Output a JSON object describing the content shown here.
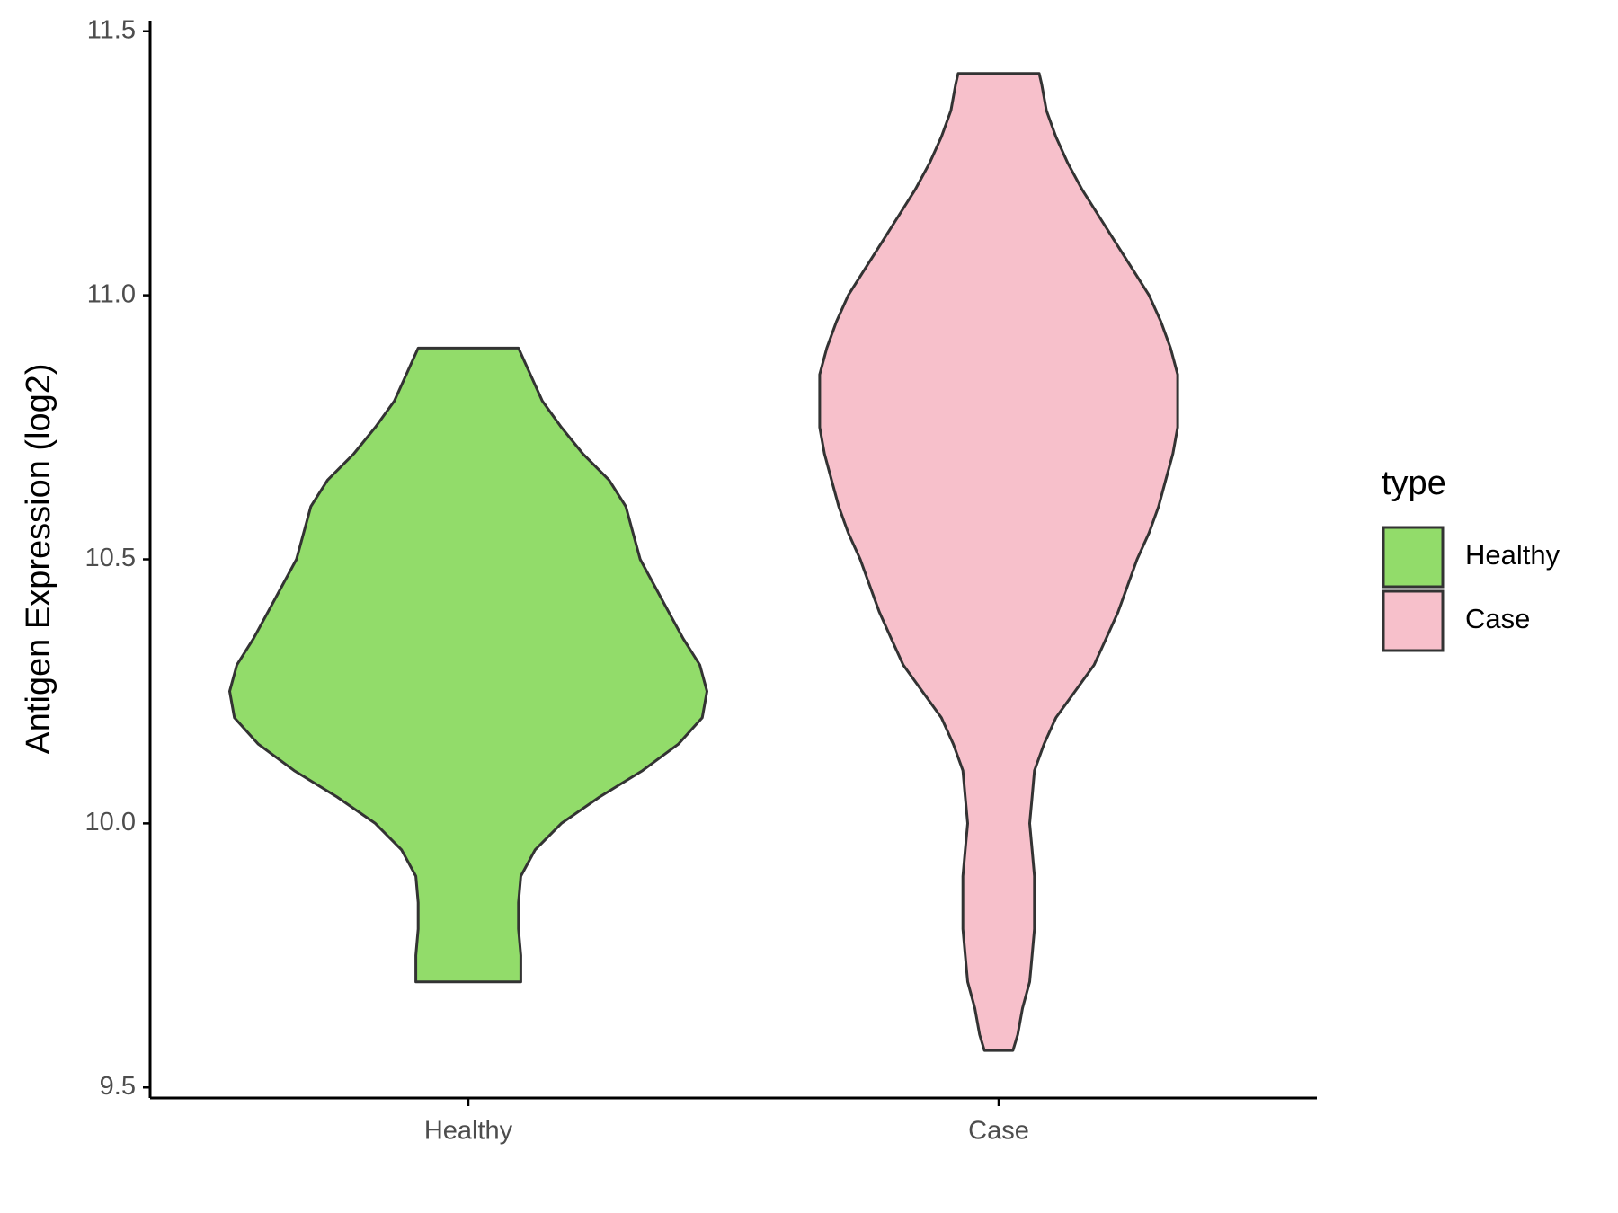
{
  "chart_data": {
    "type": "violin",
    "y_label": "Antigen Expression (log2)",
    "legend_title": "type",
    "legend_position": "right",
    "categories": [
      "Healthy",
      "Case"
    ],
    "series": [
      {
        "name": "Healthy",
        "color": "#92dc6a",
        "y": [
          9.7,
          9.75,
          9.8,
          9.85,
          9.9,
          9.95,
          10.0,
          10.05,
          10.1,
          10.15,
          10.2,
          10.25,
          10.3,
          10.35,
          10.4,
          10.45,
          10.5,
          10.55,
          10.6,
          10.65,
          10.7,
          10.75,
          10.8,
          10.85,
          10.9
        ],
        "density": [
          0.22,
          0.22,
          0.21,
          0.21,
          0.22,
          0.28,
          0.39,
          0.55,
          0.73,
          0.88,
          0.98,
          1,
          0.97,
          0.9,
          0.84,
          0.78,
          0.72,
          0.69,
          0.66,
          0.59,
          0.48,
          0.39,
          0.31,
          0.26,
          0.21
        ]
      },
      {
        "name": "Case",
        "color": "#f7c0cb",
        "y": [
          9.57,
          9.6,
          9.65,
          9.7,
          9.75,
          9.8,
          9.85,
          9.9,
          9.95,
          10.0,
          10.05,
          10.1,
          10.15,
          10.2,
          10.25,
          10.3,
          10.35,
          10.4,
          10.45,
          10.5,
          10.55,
          10.6,
          10.65,
          10.7,
          10.75,
          10.8,
          10.85,
          10.9,
          10.95,
          11.0,
          11.05,
          11.1,
          11.15,
          11.2,
          11.25,
          11.3,
          11.35,
          11.4,
          11.42
        ],
        "density": [
          0.06,
          0.08,
          0.1,
          0.13,
          0.14,
          0.15,
          0.15,
          0.15,
          0.14,
          0.13,
          0.14,
          0.15,
          0.19,
          0.24,
          0.32,
          0.4,
          0.45,
          0.5,
          0.54,
          0.58,
          0.63,
          0.67,
          0.7,
          0.73,
          0.75,
          0.75,
          0.75,
          0.72,
          0.68,
          0.63,
          0.56,
          0.49,
          0.42,
          0.35,
          0.29,
          0.24,
          0.2,
          0.18,
          0.17
        ]
      }
    ],
    "ylim": [
      9.48,
      11.52
    ],
    "yticks": [
      9.5,
      {
        "value": 10,
        "label": "10.0"
      },
      10.5,
      {
        "value": 11,
        "label": "11.0"
      },
      11.5
    ],
    "grid": false
  }
}
